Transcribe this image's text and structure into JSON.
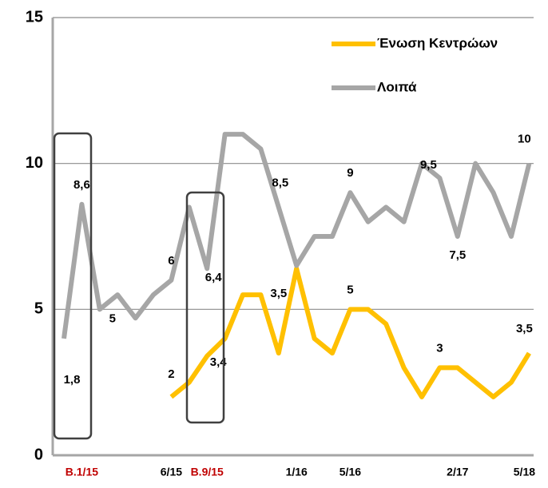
{
  "chart_data": {
    "type": "line",
    "categories": [
      null,
      "B.1/15",
      null,
      null,
      null,
      null,
      "6/15",
      null,
      "B.9/15",
      null,
      null,
      null,
      null,
      "1/16",
      null,
      null,
      "5/16",
      null,
      null,
      null,
      null,
      null,
      "2/17",
      null,
      null,
      null,
      "5/18"
    ],
    "series": [
      {
        "name": "Ένωση Κεντρώων",
        "color": "#ffc000",
        "values": [
          null,
          null,
          null,
          null,
          null,
          null,
          2,
          2.5,
          3.4,
          4,
          5.5,
          5.5,
          3.5,
          6.4,
          4,
          3.5,
          5,
          5,
          4.5,
          3,
          2,
          3,
          3,
          2.5,
          2,
          2.5,
          3.5
        ],
        "value_labels": [
          null,
          null,
          null,
          null,
          null,
          null,
          "2",
          null,
          "3,4",
          null,
          null,
          null,
          "3,5",
          null,
          null,
          null,
          "5",
          null,
          null,
          null,
          null,
          "3",
          null,
          null,
          null,
          null,
          "3,5"
        ]
      },
      {
        "name": "Λοιπά",
        "color": "#a6a6a6",
        "values": [
          4,
          8.6,
          5,
          5.5,
          4.7,
          5.5,
          6,
          8.5,
          6.4,
          11,
          11,
          10.5,
          8.5,
          6.5,
          7.5,
          7.5,
          9,
          8,
          8.5,
          8,
          10,
          9.5,
          7.5,
          10,
          9,
          7.5,
          10
        ],
        "value_labels": [
          null,
          "8,6",
          "5",
          null,
          null,
          null,
          "6",
          null,
          "6,4",
          null,
          null,
          null,
          "8,5",
          null,
          null,
          null,
          "9",
          null,
          null,
          null,
          null,
          "9,5",
          "7,5",
          null,
          null,
          null,
          "10"
        ]
      }
    ],
    "annotations": [
      "1,8"
    ],
    "ylim": [
      0,
      15
    ],
    "yticks": [
      0,
      5,
      10,
      15
    ],
    "grid": true,
    "legend": "top-right"
  }
}
